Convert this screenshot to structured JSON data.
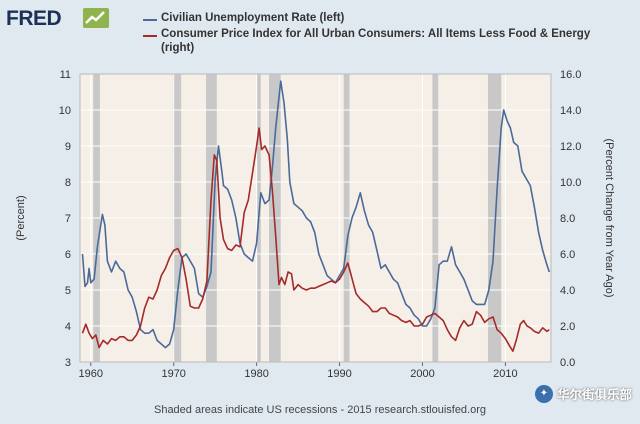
{
  "logo": "FRED",
  "legend": {
    "unemployment": "Civilian Unemployment Rate (left)",
    "cpi": "Consumer Price Index for All Urban Consumers: All Items Less Food & Energy (right)"
  },
  "footer": "Shaded areas indicate US recessions - 2015 research.stlouisfed.org",
  "watermark": "华尔街俱乐部",
  "colors": {
    "unemployment": "#4a6a9a",
    "cpi": "#a52a2a",
    "recession": "#c8c8c8",
    "plot_bg": "#f5efe7"
  },
  "chart_data": {
    "type": "line",
    "title": "",
    "xlabel": "",
    "ylabel_left": "(Percent)",
    "ylabel_right": "(Percent Change from Year Ago)",
    "xlim": [
      1958.7,
      2015.5
    ],
    "ylim_left": [
      3,
      11
    ],
    "ylim_right": [
      0,
      16
    ],
    "x_ticks": [
      1960,
      1970,
      1980,
      1990,
      2000,
      2010
    ],
    "x_tick_labels": [
      "1960",
      "1970",
      "1980",
      "1990",
      "2000",
      "2010"
    ],
    "y_left_ticks": [
      3,
      4,
      5,
      6,
      7,
      8,
      9,
      10,
      11
    ],
    "y_left_tick_labels": [
      "3",
      "4",
      "5",
      "6",
      "7",
      "8",
      "9",
      "10",
      "11"
    ],
    "y_right_ticks": [
      0,
      2,
      4,
      6,
      8,
      10,
      12,
      14,
      16
    ],
    "y_right_tick_labels": [
      "0.0",
      "2.0",
      "4.0",
      "6.0",
      "8.0",
      "10.0",
      "12.0",
      "14.0",
      "16.0"
    ],
    "recessions": [
      [
        1960.3,
        1961.1
      ],
      [
        1969.9,
        1970.9
      ],
      [
        1973.9,
        1975.2
      ],
      [
        1980.0,
        1980.5
      ],
      [
        1981.5,
        1982.9
      ],
      [
        1990.5,
        1991.2
      ],
      [
        2001.2,
        2001.9
      ],
      [
        2007.9,
        2009.5
      ]
    ],
    "series": [
      {
        "name": "Civilian Unemployment Rate",
        "axis": "left",
        "points": [
          [
            1959.0,
            6.0
          ],
          [
            1959.3,
            5.1
          ],
          [
            1959.6,
            5.2
          ],
          [
            1959.8,
            5.6
          ],
          [
            1960.0,
            5.2
          ],
          [
            1960.4,
            5.3
          ],
          [
            1960.8,
            6.2
          ],
          [
            1961.2,
            6.8
          ],
          [
            1961.4,
            7.1
          ],
          [
            1961.7,
            6.8
          ],
          [
            1962.0,
            5.8
          ],
          [
            1962.5,
            5.5
          ],
          [
            1963.0,
            5.8
          ],
          [
            1963.5,
            5.6
          ],
          [
            1964.0,
            5.5
          ],
          [
            1964.5,
            5.0
          ],
          [
            1965.0,
            4.8
          ],
          [
            1965.5,
            4.4
          ],
          [
            1966.0,
            3.9
          ],
          [
            1966.5,
            3.8
          ],
          [
            1967.0,
            3.8
          ],
          [
            1967.5,
            3.9
          ],
          [
            1968.0,
            3.6
          ],
          [
            1968.5,
            3.5
          ],
          [
            1969.0,
            3.4
          ],
          [
            1969.5,
            3.5
          ],
          [
            1970.0,
            3.9
          ],
          [
            1970.5,
            5.0
          ],
          [
            1971.0,
            5.9
          ],
          [
            1971.5,
            6.0
          ],
          [
            1972.0,
            5.8
          ],
          [
            1972.5,
            5.6
          ],
          [
            1973.0,
            4.9
          ],
          [
            1973.5,
            4.8
          ],
          [
            1974.0,
            5.1
          ],
          [
            1974.5,
            5.5
          ],
          [
            1975.0,
            8.1
          ],
          [
            1975.4,
            9.0
          ],
          [
            1975.8,
            8.3
          ],
          [
            1976.0,
            7.9
          ],
          [
            1976.5,
            7.8
          ],
          [
            1977.0,
            7.5
          ],
          [
            1977.5,
            7.0
          ],
          [
            1978.0,
            6.3
          ],
          [
            1978.5,
            6.0
          ],
          [
            1979.0,
            5.9
          ],
          [
            1979.5,
            5.8
          ],
          [
            1980.0,
            6.3
          ],
          [
            1980.5,
            7.7
          ],
          [
            1981.0,
            7.4
          ],
          [
            1981.5,
            7.5
          ],
          [
            1981.9,
            8.4
          ],
          [
            1982.3,
            9.5
          ],
          [
            1982.9,
            10.8
          ],
          [
            1983.3,
            10.2
          ],
          [
            1983.7,
            9.2
          ],
          [
            1984.0,
            8.0
          ],
          [
            1984.5,
            7.4
          ],
          [
            1985.0,
            7.3
          ],
          [
            1985.5,
            7.2
          ],
          [
            1986.0,
            7.0
          ],
          [
            1986.5,
            6.9
          ],
          [
            1987.0,
            6.6
          ],
          [
            1987.5,
            6.0
          ],
          [
            1988.0,
            5.7
          ],
          [
            1988.5,
            5.4
          ],
          [
            1989.0,
            5.3
          ],
          [
            1989.5,
            5.2
          ],
          [
            1990.0,
            5.4
          ],
          [
            1990.5,
            5.6
          ],
          [
            1991.0,
            6.5
          ],
          [
            1991.5,
            7.0
          ],
          [
            1992.0,
            7.3
          ],
          [
            1992.5,
            7.7
          ],
          [
            1993.0,
            7.2
          ],
          [
            1993.5,
            6.8
          ],
          [
            1994.0,
            6.6
          ],
          [
            1994.5,
            6.1
          ],
          [
            1995.0,
            5.6
          ],
          [
            1995.5,
            5.7
          ],
          [
            1996.0,
            5.5
          ],
          [
            1996.5,
            5.3
          ],
          [
            1997.0,
            5.2
          ],
          [
            1997.5,
            4.9
          ],
          [
            1998.0,
            4.6
          ],
          [
            1998.5,
            4.5
          ],
          [
            1999.0,
            4.3
          ],
          [
            1999.5,
            4.2
          ],
          [
            2000.0,
            4.0
          ],
          [
            2000.5,
            4.0
          ],
          [
            2001.0,
            4.2
          ],
          [
            2001.5,
            4.5
          ],
          [
            2002.0,
            5.7
          ],
          [
            2002.5,
            5.8
          ],
          [
            2003.0,
            5.8
          ],
          [
            2003.5,
            6.2
          ],
          [
            2004.0,
            5.7
          ],
          [
            2004.5,
            5.5
          ],
          [
            2005.0,
            5.3
          ],
          [
            2005.5,
            5.0
          ],
          [
            2006.0,
            4.7
          ],
          [
            2006.5,
            4.6
          ],
          [
            2007.0,
            4.6
          ],
          [
            2007.5,
            4.6
          ],
          [
            2008.0,
            5.0
          ],
          [
            2008.5,
            5.8
          ],
          [
            2009.0,
            7.8
          ],
          [
            2009.5,
            9.5
          ],
          [
            2009.8,
            10.0
          ],
          [
            2010.2,
            9.7
          ],
          [
            2010.6,
            9.5
          ],
          [
            2011.0,
            9.1
          ],
          [
            2011.5,
            9.0
          ],
          [
            2012.0,
            8.3
          ],
          [
            2012.5,
            8.1
          ],
          [
            2013.0,
            7.9
          ],
          [
            2013.5,
            7.3
          ],
          [
            2014.0,
            6.6
          ],
          [
            2014.5,
            6.1
          ],
          [
            2015.0,
            5.7
          ],
          [
            2015.3,
            5.5
          ]
        ]
      },
      {
        "name": "Consumer Price Index for All Urban Consumers: All Items Less Food & Energy",
        "axis": "right",
        "points": [
          [
            1959.0,
            1.6
          ],
          [
            1959.4,
            2.1
          ],
          [
            1959.8,
            1.6
          ],
          [
            1960.2,
            1.3
          ],
          [
            1960.6,
            1.5
          ],
          [
            1961.0,
            0.8
          ],
          [
            1961.5,
            1.2
          ],
          [
            1962.0,
            1.0
          ],
          [
            1962.5,
            1.3
          ],
          [
            1963.0,
            1.2
          ],
          [
            1963.5,
            1.4
          ],
          [
            1964.0,
            1.4
          ],
          [
            1964.5,
            1.2
          ],
          [
            1965.0,
            1.2
          ],
          [
            1965.5,
            1.5
          ],
          [
            1966.0,
            2.0
          ],
          [
            1966.5,
            3.0
          ],
          [
            1967.0,
            3.6
          ],
          [
            1967.5,
            3.5
          ],
          [
            1968.0,
            4.0
          ],
          [
            1968.5,
            4.8
          ],
          [
            1969.0,
            5.2
          ],
          [
            1969.5,
            5.8
          ],
          [
            1970.0,
            6.2
          ],
          [
            1970.5,
            6.3
          ],
          [
            1971.0,
            5.8
          ],
          [
            1971.5,
            4.6
          ],
          [
            1972.0,
            3.1
          ],
          [
            1972.5,
            3.0
          ],
          [
            1973.0,
            3.0
          ],
          [
            1973.5,
            3.5
          ],
          [
            1974.0,
            4.5
          ],
          [
            1974.5,
            9.0
          ],
          [
            1974.9,
            11.5
          ],
          [
            1975.2,
            11.2
          ],
          [
            1975.6,
            8.0
          ],
          [
            1976.0,
            6.8
          ],
          [
            1976.5,
            6.3
          ],
          [
            1977.0,
            6.2
          ],
          [
            1977.5,
            6.5
          ],
          [
            1978.0,
            6.4
          ],
          [
            1978.5,
            8.3
          ],
          [
            1979.0,
            9.0
          ],
          [
            1979.5,
            10.5
          ],
          [
            1980.0,
            12.0
          ],
          [
            1980.3,
            13.0
          ],
          [
            1980.6,
            11.8
          ],
          [
            1981.0,
            12.0
          ],
          [
            1981.5,
            11.5
          ],
          [
            1981.9,
            9.5
          ],
          [
            1982.3,
            7.0
          ],
          [
            1982.7,
            4.3
          ],
          [
            1983.0,
            4.7
          ],
          [
            1983.4,
            4.3
          ],
          [
            1983.8,
            5.0
          ],
          [
            1984.2,
            4.9
          ],
          [
            1984.5,
            4.0
          ],
          [
            1985.0,
            4.3
          ],
          [
            1985.5,
            4.1
          ],
          [
            1986.0,
            4.0
          ],
          [
            1986.5,
            4.1
          ],
          [
            1987.0,
            4.1
          ],
          [
            1987.5,
            4.2
          ],
          [
            1988.0,
            4.3
          ],
          [
            1988.5,
            4.4
          ],
          [
            1989.0,
            4.5
          ],
          [
            1989.5,
            4.4
          ],
          [
            1990.0,
            4.6
          ],
          [
            1990.5,
            5.0
          ],
          [
            1991.0,
            5.5
          ],
          [
            1991.3,
            5.0
          ],
          [
            1991.7,
            4.3
          ],
          [
            1992.0,
            3.8
          ],
          [
            1992.5,
            3.5
          ],
          [
            1993.0,
            3.3
          ],
          [
            1993.5,
            3.1
          ],
          [
            1994.0,
            2.8
          ],
          [
            1994.5,
            2.8
          ],
          [
            1995.0,
            3.0
          ],
          [
            1995.5,
            3.0
          ],
          [
            1996.0,
            2.7
          ],
          [
            1996.5,
            2.6
          ],
          [
            1997.0,
            2.5
          ],
          [
            1997.5,
            2.3
          ],
          [
            1998.0,
            2.2
          ],
          [
            1998.5,
            2.3
          ],
          [
            1999.0,
            2.0
          ],
          [
            1999.5,
            2.0
          ],
          [
            2000.0,
            2.1
          ],
          [
            2000.5,
            2.5
          ],
          [
            2001.0,
            2.6
          ],
          [
            2001.5,
            2.7
          ],
          [
            2002.0,
            2.5
          ],
          [
            2002.5,
            2.3
          ],
          [
            2003.0,
            1.8
          ],
          [
            2003.5,
            1.4
          ],
          [
            2004.0,
            1.2
          ],
          [
            2004.5,
            1.9
          ],
          [
            2005.0,
            2.3
          ],
          [
            2005.5,
            2.0
          ],
          [
            2006.0,
            2.1
          ],
          [
            2006.5,
            2.8
          ],
          [
            2007.0,
            2.6
          ],
          [
            2007.5,
            2.2
          ],
          [
            2008.0,
            2.4
          ],
          [
            2008.5,
            2.5
          ],
          [
            2009.0,
            1.8
          ],
          [
            2009.5,
            1.6
          ],
          [
            2010.0,
            1.3
          ],
          [
            2010.5,
            0.9
          ],
          [
            2010.9,
            0.6
          ],
          [
            2011.3,
            1.2
          ],
          [
            2011.8,
            2.1
          ],
          [
            2012.2,
            2.3
          ],
          [
            2012.6,
            2.0
          ],
          [
            2013.0,
            1.9
          ],
          [
            2013.5,
            1.7
          ],
          [
            2014.0,
            1.6
          ],
          [
            2014.5,
            1.9
          ],
          [
            2015.0,
            1.7
          ],
          [
            2015.3,
            1.8
          ]
        ]
      }
    ]
  }
}
